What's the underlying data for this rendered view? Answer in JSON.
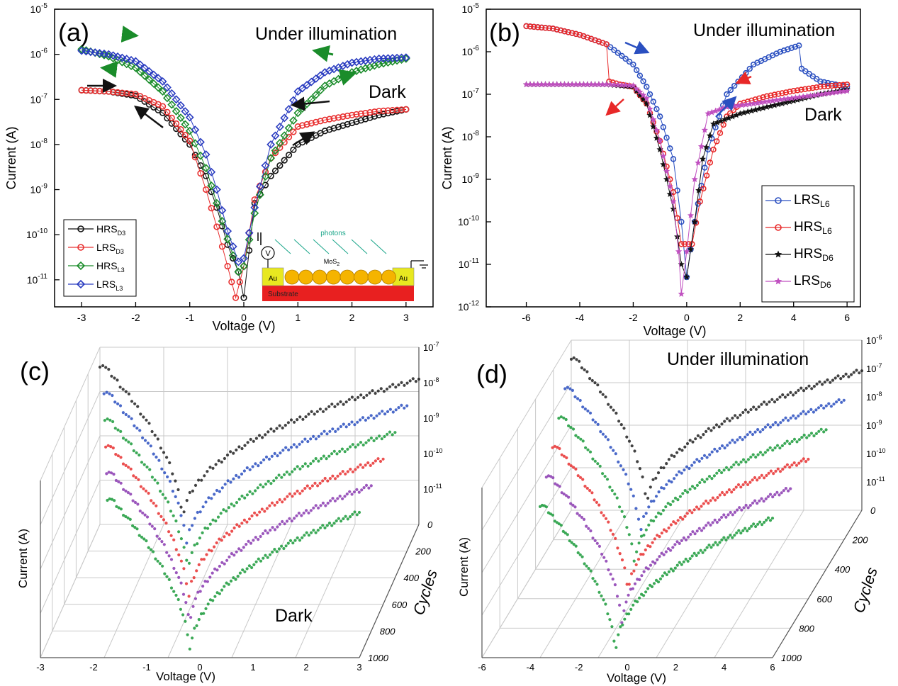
{
  "chart_data": [
    {
      "panel": "(a)",
      "type": "line",
      "xlabel": "Voltage (V)",
      "ylabel": "Current (A)",
      "xlim": [
        -3.5,
        3.5
      ],
      "ylim_exp": [
        -11.6,
        -5
      ],
      "log_y": true,
      "xticks": [
        "-3",
        "-2",
        "-1",
        "0",
        "1",
        "2",
        "3"
      ],
      "ytick_exps": [
        -11,
        -10,
        -9,
        -8,
        -7,
        -6,
        -5
      ],
      "annotations": [
        "Under illumination",
        "Dark"
      ],
      "legend_position": "bottom-left",
      "series": [
        {
          "name": "HRS",
          "sub": "D3",
          "color": "#111111",
          "marker": "circle",
          "x": [
            -3,
            -2.5,
            -2,
            -1.5,
            -1,
            -0.7,
            -0.5,
            -0.3,
            -0.1,
            0,
            0.2,
            0.5,
            1,
            1.5,
            2,
            2.5,
            3
          ],
          "y": [
            1.6e-07,
            1.5e-07,
            1.2e-07,
            5e-08,
            1e-08,
            2e-09,
            4e-10,
            6e-11,
            1.5e-11,
            4e-12,
            5e-10,
            2e-09,
            1e-08,
            2e-08,
            3e-08,
            4.5e-08,
            6e-08
          ]
        },
        {
          "name": "LRS",
          "sub": "D3",
          "color": "#e83030",
          "marker": "circle",
          "x": [
            -3,
            -2.5,
            -2,
            -1.5,
            -1,
            -0.7,
            -0.5,
            -0.3,
            -0.15,
            0,
            0.2,
            0.5,
            1,
            1.5,
            2,
            2.5,
            3
          ],
          "y": [
            1.6e-07,
            1.5e-07,
            1.3e-07,
            7e-08,
            1.2e-08,
            1e-09,
            1.5e-10,
            2e-11,
            4e-12,
            2e-11,
            6e-10,
            5e-09,
            2.5e-08,
            3.5e-08,
            4.5e-08,
            5.5e-08,
            6e-08
          ]
        },
        {
          "name": "HRS",
          "sub": "L3",
          "color": "#1a8c2a",
          "marker": "diamond",
          "x": [
            -3,
            -2.5,
            -2,
            -1.5,
            -1,
            -0.7,
            -0.5,
            -0.3,
            -0.1,
            0,
            0.2,
            0.5,
            1,
            1.5,
            2,
            2.5,
            3
          ],
          "y": [
            1.3e-06,
            9e-07,
            5e-07,
            1.5e-07,
            2e-08,
            3e-09,
            5e-10,
            8e-11,
            1.5e-11,
            2e-11,
            3e-10,
            5e-09,
            5e-08,
            2e-07,
            4e-07,
            6e-07,
            8e-07
          ]
        },
        {
          "name": "LRS",
          "sub": "L3",
          "color": "#2a3cc0",
          "marker": "diamond",
          "x": [
            -3,
            -2.5,
            -2,
            -1.5,
            -1,
            -0.7,
            -0.5,
            -0.3,
            -0.1,
            0,
            0.2,
            0.5,
            1,
            1.5,
            2,
            2.5,
            3
          ],
          "y": [
            1.2e-06,
            1e-06,
            7e-07,
            2.5e-07,
            4e-08,
            6e-09,
            1e-09,
            1.2e-10,
            2.5e-11,
            3e-11,
            4e-10,
            1e-08,
            1.5e-07,
            4e-07,
            6.5e-07,
            8e-07,
            8.5e-07
          ]
        }
      ],
      "inset": {
        "labels": [
          "photons",
          "MoS",
          "2",
          "Au",
          "Au",
          "Substrate",
          "V"
        ]
      }
    },
    {
      "panel": "(b)",
      "type": "line",
      "xlabel": "Voltage (V)",
      "ylabel": "Current (A)",
      "xlim": [
        -7.5,
        6.5
      ],
      "ylim_exp": [
        -12,
        -5
      ],
      "log_y": true,
      "xticks": [
        "-6",
        "-4",
        "-2",
        "0",
        "2",
        "4",
        "6"
      ],
      "ytick_exps": [
        -12,
        -11,
        -10,
        -9,
        -8,
        -7,
        -6,
        -5
      ],
      "annotations": [
        "Under illumination",
        "Dark"
      ],
      "legend_position": "bottom-right",
      "series": [
        {
          "name": "LRS",
          "sub": "L6",
          "color": "#2a4fc0",
          "marker": "circle",
          "x": [
            -6,
            -5,
            -4,
            -3,
            -2,
            -1.5,
            -1,
            -0.5,
            -0.2,
            0,
            0.3,
            0.8,
            1.5,
            2.5,
            3.5,
            4.2,
            4.3,
            5,
            6
          ],
          "y": [
            4e-06,
            3.5e-06,
            2.5e-06,
            1.5e-06,
            5e-07,
            1.5e-07,
            3e-08,
            3e-09,
            1e-10,
            5e-12,
            1e-10,
            5e-09,
            1e-07,
            5e-07,
            1e-06,
            1.4e-06,
            4e-07,
            2e-07,
            1.5e-07
          ]
        },
        {
          "name": "HRS",
          "sub": "L6",
          "color": "#e82828",
          "marker": "circle",
          "x": [
            -6,
            -5,
            -4,
            -3,
            -2.9,
            -2.5,
            -2,
            -1.5,
            -1,
            -0.5,
            -0.2,
            0.2,
            0.5,
            1,
            1.5,
            2,
            3,
            4,
            5,
            6
          ],
          "y": [
            4e-06,
            3.5e-06,
            2.5e-06,
            1.5e-06,
            2e-07,
            1.7e-07,
            1.5e-07,
            6e-08,
            8e-09,
            5e-10,
            3e-11,
            3e-11,
            3e-10,
            5e-09,
            3e-08,
            6e-08,
            9e-08,
            1.2e-07,
            1.5e-07,
            1.7e-07
          ]
        },
        {
          "name": "HRS",
          "sub": "D6",
          "color": "#111111",
          "marker": "star",
          "x": [
            -6,
            -5,
            -4,
            -3,
            -2,
            -1.5,
            -1,
            -0.5,
            -0.2,
            0,
            0.3,
            0.6,
            1,
            2,
            3,
            4,
            5,
            6
          ],
          "y": [
            1.7e-07,
            1.7e-07,
            1.7e-07,
            1.7e-07,
            1.5e-07,
            6e-08,
            5e-09,
            2e-10,
            1e-11,
            5e-12,
            1e-10,
            3e-09,
            2e-08,
            3.5e-08,
            5e-08,
            7e-08,
            1e-07,
            1.3e-07
          ]
        },
        {
          "name": "LRS",
          "sub": "D6",
          "color": "#c050c0",
          "marker": "star",
          "x": [
            -6,
            -5,
            -4,
            -3,
            -2,
            -1.5,
            -1,
            -0.5,
            -0.3,
            -0.2,
            0,
            0.3,
            0.8,
            1.5,
            2.5,
            3.5,
            4.5,
            6
          ],
          "y": [
            1.7e-07,
            1.7e-07,
            1.7e-07,
            1.7e-07,
            1.6e-07,
            8e-08,
            8e-09,
            3e-10,
            2e-11,
            2e-12,
            2e-11,
            1e-09,
            3.5e-08,
            5e-08,
            6e-08,
            7.5e-08,
            9e-08,
            1.2e-07
          ]
        }
      ]
    },
    {
      "panel": "(c)",
      "type": "scatter",
      "xlabel": "Voltage (V)",
      "ylabel": "Current (A)",
      "zlabel": "Cycles",
      "xticks": [
        "-3",
        "-2",
        "-1",
        "0",
        "1",
        "2",
        "3"
      ],
      "cycle_ticks": [
        "0",
        "200",
        "400",
        "600",
        "800",
        "1000"
      ],
      "ytick_exps": [
        -7,
        -8,
        -9,
        -10,
        -11
      ],
      "annotations": [
        "Dark"
      ],
      "curve_colors": [
        "#222222",
        "#2a4fc0",
        "#1a9a3a",
        "#e83030",
        "#8a3ab0",
        "#1a9a3a"
      ]
    },
    {
      "panel": "(d)",
      "type": "scatter",
      "xlabel": "Voltage (V)",
      "ylabel": "Current (A)",
      "zlabel": "Cycles",
      "xticks": [
        "-6",
        "-4",
        "-2",
        "0",
        "2",
        "4",
        "6"
      ],
      "cycle_ticks": [
        "0",
        "200",
        "400",
        "600",
        "800",
        "1000"
      ],
      "ytick_exps": [
        -6,
        -7,
        -8,
        -9,
        -10,
        -11
      ],
      "annotations": [
        "Under illumination"
      ],
      "curve_colors": [
        "#222222",
        "#2a4fc0",
        "#1a9a3a",
        "#e83030",
        "#8a3ab0",
        "#1a9a3a"
      ]
    }
  ]
}
